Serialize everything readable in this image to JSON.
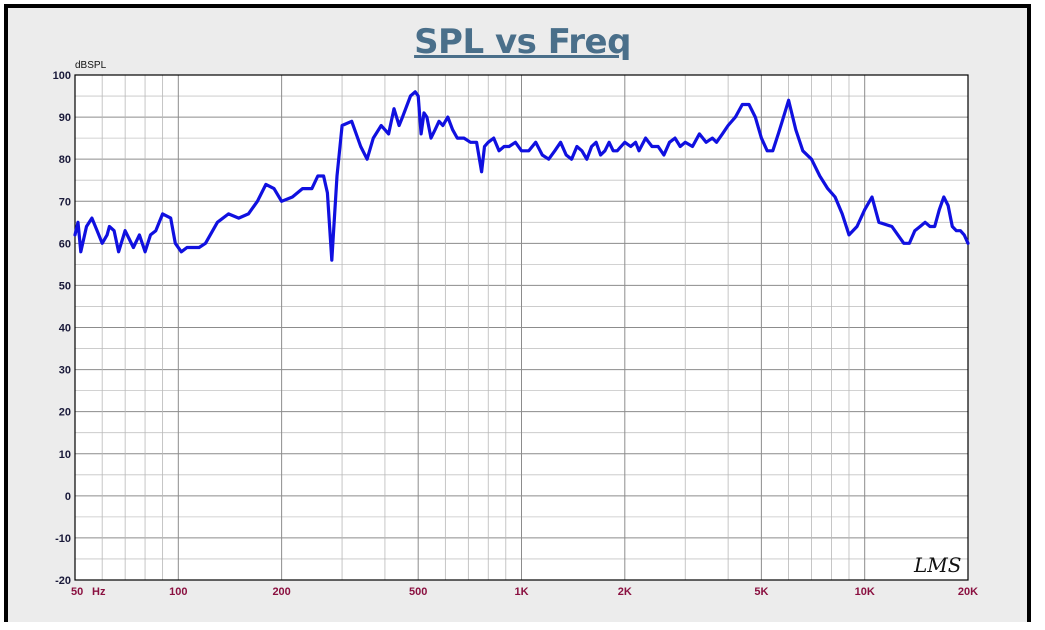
{
  "chart_data": {
    "type": "line",
    "title": "SPL vs Freq",
    "ylabel": "dBSPL",
    "x_unit": "Hz",
    "x_scale": "log",
    "xlim": [
      50,
      20000
    ],
    "ylim": [
      -20,
      100
    ],
    "y_ticks": [
      100,
      90,
      80,
      70,
      60,
      50,
      40,
      30,
      20,
      10,
      0,
      -10,
      -20
    ],
    "x_ticks": [
      {
        "value": 50,
        "label": "50"
      },
      {
        "value": 100,
        "label": "100"
      },
      {
        "value": 200,
        "label": "200"
      },
      {
        "value": 500,
        "label": "500"
      },
      {
        "value": 1000,
        "label": "1K"
      },
      {
        "value": 2000,
        "label": "2K"
      },
      {
        "value": 5000,
        "label": "5K"
      },
      {
        "value": 10000,
        "label": "10K"
      },
      {
        "value": 20000,
        "label": "20K"
      }
    ],
    "grid": true,
    "watermark": "LMS",
    "series": [
      {
        "color": "#1010e0",
        "x": [
          50,
          51,
          52,
          54,
          56,
          58,
          60,
          62,
          63,
          65,
          67,
          70,
          72,
          74,
          77,
          80,
          83,
          86,
          90,
          95,
          98,
          102,
          106,
          110,
          115,
          120,
          130,
          140,
          150,
          160,
          170,
          180,
          190,
          200,
          215,
          230,
          245,
          255,
          265,
          272,
          276,
          280,
          290,
          300,
          320,
          340,
          355,
          370,
          390,
          400,
          410,
          425,
          440,
          450,
          475,
          490,
          500,
          510,
          520,
          530,
          545,
          560,
          575,
          590,
          610,
          630,
          650,
          680,
          710,
          740,
          765,
          780,
          800,
          830,
          860,
          890,
          920,
          960,
          1000,
          1050,
          1100,
          1150,
          1200,
          1250,
          1300,
          1350,
          1400,
          1450,
          1500,
          1550,
          1600,
          1650,
          1700,
          1750,
          1800,
          1850,
          1900,
          1950,
          2000,
          2080,
          2150,
          2200,
          2300,
          2400,
          2500,
          2600,
          2700,
          2800,
          2900,
          3000,
          3150,
          3300,
          3450,
          3600,
          3700,
          3850,
          4000,
          4200,
          4400,
          4600,
          4800,
          5000,
          5200,
          5400,
          5600,
          5750,
          6000,
          6300,
          6600,
          7000,
          7400,
          7800,
          8200,
          8600,
          9000,
          9500,
          10000,
          10500,
          11000,
          12000,
          13000,
          13500,
          14000,
          14500,
          15000,
          15500,
          16000,
          16500,
          17000,
          17500,
          18000,
          18500,
          19000,
          19500,
          20000
        ],
        "y": [
          62,
          65,
          58,
          64,
          66,
          63,
          60,
          62,
          64,
          63,
          58,
          63,
          61,
          59,
          62,
          58,
          62,
          63,
          67,
          66,
          60,
          58,
          59,
          59,
          59,
          60,
          65,
          67,
          66,
          67,
          70,
          74,
          73,
          70,
          71,
          73,
          73,
          76,
          76,
          72,
          64,
          56,
          76,
          88,
          89,
          83,
          80,
          85,
          88,
          87,
          86,
          92,
          88,
          90,
          95,
          96,
          95,
          86,
          91,
          90,
          85,
          87,
          89,
          88,
          90,
          87,
          85,
          85,
          84,
          84,
          77,
          83,
          84,
          85,
          82,
          83,
          83,
          84,
          82,
          82,
          84,
          81,
          80,
          82,
          84,
          81,
          80,
          83,
          82,
          80,
          83,
          84,
          81,
          82,
          84,
          82,
          82,
          83,
          84,
          83,
          84,
          82,
          85,
          83,
          83,
          81,
          84,
          85,
          83,
          84,
          83,
          86,
          84,
          85,
          84,
          86,
          88,
          90,
          93,
          93,
          90,
          85,
          82,
          82,
          86,
          89,
          94,
          87,
          82,
          80,
          76,
          73,
          71,
          67,
          62,
          64,
          68,
          71,
          65,
          64,
          60,
          60,
          63,
          64,
          65,
          64,
          64,
          68,
          71,
          69,
          64,
          63,
          63,
          62,
          60
        ]
      }
    ]
  }
}
